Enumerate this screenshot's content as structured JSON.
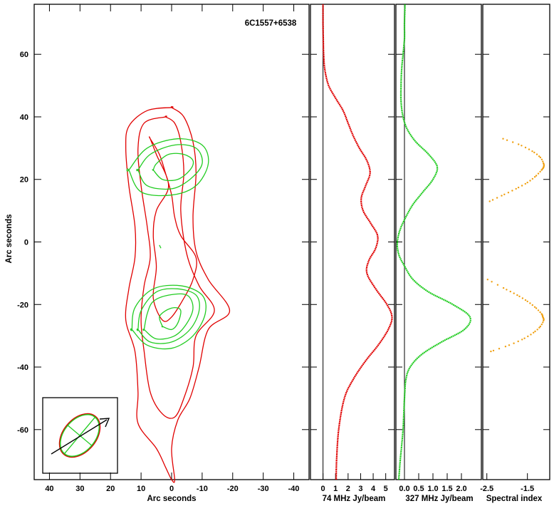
{
  "chart_data": [
    {
      "type": "contour",
      "title": "6C1557+6538",
      "xlabel": "Arc seconds",
      "ylabel": "Arc seconds",
      "xlim": [
        45,
        -45
      ],
      "ylim": [
        -76,
        76
      ],
      "x_ticks": [
        40,
        30,
        20,
        10,
        0,
        -10,
        -20,
        -30,
        -40
      ],
      "y_ticks": [
        60,
        40,
        20,
        0,
        -20,
        -40,
        -60
      ],
      "series": [
        {
          "color": "#e00000",
          "contours": [
            [
              [
                0,
                43
              ],
              [
                8,
                42
              ],
              [
                14,
                37
              ],
              [
                15,
                30
              ],
              [
                14,
                18
              ],
              [
                12,
                5
              ],
              [
                12,
                -5
              ],
              [
                14,
                -15
              ],
              [
                15,
                -25
              ],
              [
                12,
                -35
              ],
              [
                11,
                -48
              ],
              [
                11,
                -58
              ],
              [
                5,
                -66
              ],
              [
                2,
                -72
              ],
              [
                0,
                -76
              ],
              [
                -1,
                -76
              ],
              [
                0,
                -66
              ],
              [
                -2,
                -57
              ],
              [
                -6,
                -50
              ],
              [
                -9,
                -40
              ],
              [
                -12,
                -28
              ],
              [
                -19,
                -22
              ],
              [
                -12,
                -12
              ],
              [
                -8,
                -3
              ],
              [
                -7,
                8
              ],
              [
                -8,
                22
              ],
              [
                -7,
                32
              ],
              [
                -4,
                40
              ],
              [
                0,
                43
              ]
            ],
            [
              [
                2,
                40
              ],
              [
                9,
                38
              ],
              [
                11,
                30
              ],
              [
                10,
                18
              ],
              [
                8,
                5
              ],
              [
                7,
                -5
              ],
              [
                9,
                -14
              ],
              [
                10,
                -25
              ],
              [
                9,
                -35
              ],
              [
                7,
                -48
              ],
              [
                3,
                -55
              ],
              [
                -1,
                -56
              ],
              [
                -4,
                -50
              ],
              [
                -7,
                -40
              ],
              [
                -8,
                -30
              ],
              [
                -14,
                -22
              ],
              [
                -9,
                -14
              ],
              [
                -5,
                -4
              ],
              [
                -3,
                10
              ],
              [
                -4,
                22
              ],
              [
                -3,
                32
              ],
              [
                -1,
                38
              ],
              [
                2,
                40
              ]
            ],
            [
              [
                7,
                33
              ],
              [
                5,
                28
              ],
              [
                1,
                18
              ],
              [
                5,
                10
              ],
              [
                6,
                2
              ],
              [
                5,
                -8
              ],
              [
                6,
                -18
              ],
              [
                3,
                -25
              ],
              [
                0,
                -24
              ],
              [
                -4,
                -18
              ],
              [
                -7,
                -12
              ],
              [
                -8,
                -5
              ],
              [
                -3,
                2
              ],
              [
                -1,
                8
              ],
              [
                0,
                15
              ],
              [
                2,
                22
              ],
              [
                4,
                28
              ],
              [
                7,
                33
              ]
            ]
          ]
        },
        {
          "color": "#22cc22",
          "contours": [
            [
              [
                14,
                23
              ],
              [
                10,
                16
              ],
              [
                0,
                15
              ],
              [
                -8,
                18
              ],
              [
                -12,
                25
              ],
              [
                -10,
                31
              ],
              [
                -2,
                33
              ],
              [
                8,
                30
              ],
              [
                14,
                23
              ]
            ],
            [
              [
                11,
                23
              ],
              [
                8,
                18
              ],
              [
                0,
                17
              ],
              [
                -6,
                20
              ],
              [
                -10,
                25
              ],
              [
                -8,
                30
              ],
              [
                -1,
                31
              ],
              [
                7,
                28
              ],
              [
                11,
                23
              ]
            ],
            [
              [
                6,
                23
              ],
              [
                3,
                20
              ],
              [
                -2,
                20
              ],
              [
                -6,
                23
              ],
              [
                -7,
                26
              ],
              [
                -4,
                28
              ],
              [
                1,
                28
              ],
              [
                5,
                25
              ],
              [
                6,
                23
              ]
            ],
            [
              [
                13,
                -28
              ],
              [
                8,
                -33
              ],
              [
                0,
                -34
              ],
              [
                -7,
                -30
              ],
              [
                -11,
                -23
              ],
              [
                -10,
                -17
              ],
              [
                -3,
                -14
              ],
              [
                6,
                -15
              ],
              [
                12,
                -21
              ],
              [
                13,
                -28
              ]
            ],
            [
              [
                11,
                -28
              ],
              [
                7,
                -32
              ],
              [
                0,
                -32
              ],
              [
                -6,
                -28
              ],
              [
                -9,
                -22
              ],
              [
                -8,
                -17
              ],
              [
                -2,
                -15
              ],
              [
                5,
                -16
              ],
              [
                10,
                -22
              ],
              [
                11,
                -28
              ]
            ],
            [
              [
                9,
                -28
              ],
              [
                5,
                -31
              ],
              [
                -1,
                -30
              ],
              [
                -5,
                -26
              ],
              [
                -7,
                -21
              ],
              [
                -5,
                -17
              ],
              [
                1,
                -17
              ],
              [
                6,
                -19
              ],
              [
                8,
                -23
              ],
              [
                9,
                -28
              ]
            ],
            [
              [
                3,
                -27
              ],
              [
                0,
                -28
              ],
              [
                -2,
                -26
              ],
              [
                -3,
                -22
              ],
              [
                -1,
                -21
              ],
              [
                2,
                -22
              ],
              [
                4,
                -24
              ],
              [
                3,
                -27
              ]
            ],
            [
              [
                4,
                -1
              ],
              [
                3.5,
                -2
              ]
            ]
          ]
        }
      ],
      "beam": {
        "bmaj_arcsec": 21,
        "bmin_arcsec": 14,
        "pa_deg": 40,
        "colors": [
          "#e00000",
          "#22cc22"
        ]
      },
      "beam_arrow": true,
      "grid": false
    },
    {
      "type": "line",
      "xlabel": "74 MHz Jy/beam",
      "x_ticks": [
        0,
        1,
        2,
        3,
        4,
        5
      ],
      "xlim": [
        -1,
        5.7
      ],
      "ylim": [
        -76,
        76
      ],
      "zero_line": 0,
      "color": "#e00000",
      "series": [
        {
          "y": [
            -76,
            -70,
            -60,
            -50,
            -44,
            -38,
            -33,
            -28,
            -24,
            -20,
            -15,
            -10,
            -6,
            -2,
            2,
            6,
            10,
            14,
            18,
            22,
            26,
            30,
            34,
            38,
            42,
            46,
            50,
            55,
            60,
            65,
            70,
            76
          ],
          "x": [
            1.05,
            1.08,
            1.25,
            1.7,
            2.4,
            3.4,
            4.4,
            5.2,
            5.5,
            5.1,
            4.2,
            3.5,
            3.65,
            4.2,
            4.35,
            3.8,
            3.2,
            3.05,
            3.4,
            3.75,
            3.5,
            2.9,
            2.4,
            2.0,
            1.6,
            1.0,
            0.45,
            0.15,
            0.05,
            0.02,
            0.0,
            0.0
          ]
        }
      ]
    },
    {
      "type": "line",
      "xlabel": "327 MHz Jy/beam",
      "x_ticks": [
        0.0,
        0.5,
        1.0,
        1.5,
        2.0
      ],
      "x_tick_labels": [
        "0.0",
        "0.5",
        "1.0",
        "1.5",
        "2.0"
      ],
      "xlim": [
        -0.3,
        2.7
      ],
      "ylim": [
        -76,
        76
      ],
      "zero_line": 0,
      "color": "#22cc22",
      "series": [
        {
          "y": [
            -76,
            -70,
            -60,
            -50,
            -44,
            -40,
            -36,
            -32,
            -28,
            -24,
            -20,
            -16,
            -12,
            -8,
            -4,
            0,
            4,
            8,
            12,
            16,
            20,
            24,
            28,
            32,
            36,
            40,
            45,
            50,
            55,
            60,
            65,
            70,
            76
          ],
          "x": [
            -0.2,
            -0.15,
            -0.05,
            0.0,
            0.05,
            0.2,
            0.6,
            1.3,
            2.1,
            2.3,
            1.7,
            0.85,
            0.3,
            0.02,
            -0.2,
            -0.25,
            -0.15,
            0.05,
            0.3,
            0.65,
            1.0,
            1.15,
            0.85,
            0.4,
            0.1,
            -0.05,
            -0.12,
            -0.12,
            -0.1,
            -0.05,
            0.0,
            0.0,
            0.02
          ]
        }
      ]
    },
    {
      "type": "line",
      "xlabel": "Spectral index",
      "x_ticks": [
        -2.5,
        -1.5
      ],
      "x_tick_labels": [
        "-2.5",
        "-1.5"
      ],
      "xlim": [
        -2.6,
        -0.95
      ],
      "ylim": [
        -76,
        76
      ],
      "color": "#f0a010",
      "series": [
        {
          "name": "",
          "y": [
            13,
            15,
            17,
            19,
            21,
            23,
            24,
            25,
            27,
            29,
            31,
            33
          ],
          "x": [
            -2.43,
            -2.1,
            -1.78,
            -1.5,
            -1.3,
            -1.15,
            -1.1,
            -1.1,
            -1.18,
            -1.38,
            -1.68,
            -2.1
          ]
        },
        {
          "name": "",
          "y": [
            -12,
            -15,
            -17,
            -19,
            -21,
            -23,
            -24,
            -25,
            -27,
            -29,
            -31,
            -33,
            -35
          ],
          "x": [
            -2.48,
            -2.05,
            -1.75,
            -1.5,
            -1.3,
            -1.15,
            -1.12,
            -1.1,
            -1.18,
            -1.35,
            -1.6,
            -1.95,
            -2.4
          ]
        }
      ]
    }
  ]
}
